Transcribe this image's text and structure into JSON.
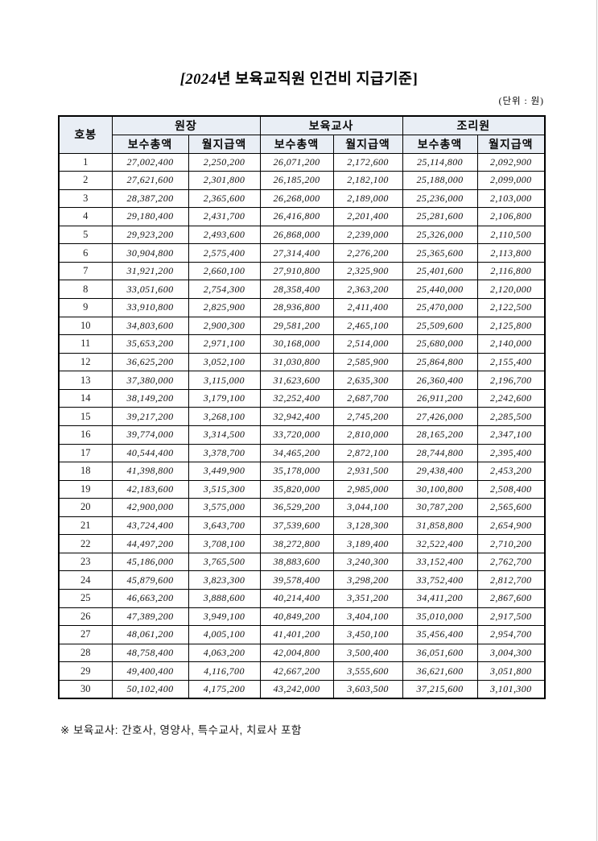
{
  "page": {
    "title_prefix": "[2024",
    "title_rest": "년 보육교직원 인건비 지급기준]",
    "unit_note": "(단위 : 원)",
    "footnote": "※ 보육교사: 간호사, 영양사, 특수교사, 치료사 포함"
  },
  "colors": {
    "header_bg": "#e9eef5",
    "border": "#000000",
    "page_edge": "#c9c9c9"
  },
  "table": {
    "corner_header": "호봉",
    "groups": [
      {
        "label": "원장"
      },
      {
        "label": "보육교사"
      },
      {
        "label": "조리원"
      }
    ],
    "sub_headers": [
      "보수총액",
      "월지급액"
    ],
    "rows": [
      {
        "grade": "1",
        "values": [
          "27,002,400",
          "2,250,200",
          "26,071,200",
          "2,172,600",
          "25,114,800",
          "2,092,900"
        ]
      },
      {
        "grade": "2",
        "values": [
          "27,621,600",
          "2,301,800",
          "26,185,200",
          "2,182,100",
          "25,188,000",
          "2,099,000"
        ]
      },
      {
        "grade": "3",
        "values": [
          "28,387,200",
          "2,365,600",
          "26,268,000",
          "2,189,000",
          "25,236,000",
          "2,103,000"
        ]
      },
      {
        "grade": "4",
        "values": [
          "29,180,400",
          "2,431,700",
          "26,416,800",
          "2,201,400",
          "25,281,600",
          "2,106,800"
        ]
      },
      {
        "grade": "5",
        "values": [
          "29,923,200",
          "2,493,600",
          "26,868,000",
          "2,239,000",
          "25,326,000",
          "2,110,500"
        ]
      },
      {
        "grade": "6",
        "values": [
          "30,904,800",
          "2,575,400",
          "27,314,400",
          "2,276,200",
          "25,365,600",
          "2,113,800"
        ]
      },
      {
        "grade": "7",
        "values": [
          "31,921,200",
          "2,660,100",
          "27,910,800",
          "2,325,900",
          "25,401,600",
          "2,116,800"
        ]
      },
      {
        "grade": "8",
        "values": [
          "33,051,600",
          "2,754,300",
          "28,358,400",
          "2,363,200",
          "25,440,000",
          "2,120,000"
        ]
      },
      {
        "grade": "9",
        "values": [
          "33,910,800",
          "2,825,900",
          "28,936,800",
          "2,411,400",
          "25,470,000",
          "2,122,500"
        ]
      },
      {
        "grade": "10",
        "values": [
          "34,803,600",
          "2,900,300",
          "29,581,200",
          "2,465,100",
          "25,509,600",
          "2,125,800"
        ]
      },
      {
        "grade": "11",
        "values": [
          "35,653,200",
          "2,971,100",
          "30,168,000",
          "2,514,000",
          "25,680,000",
          "2,140,000"
        ]
      },
      {
        "grade": "12",
        "values": [
          "36,625,200",
          "3,052,100",
          "31,030,800",
          "2,585,900",
          "25,864,800",
          "2,155,400"
        ]
      },
      {
        "grade": "13",
        "values": [
          "37,380,000",
          "3,115,000",
          "31,623,600",
          "2,635,300",
          "26,360,400",
          "2,196,700"
        ]
      },
      {
        "grade": "14",
        "values": [
          "38,149,200",
          "3,179,100",
          "32,252,400",
          "2,687,700",
          "26,911,200",
          "2,242,600"
        ]
      },
      {
        "grade": "15",
        "values": [
          "39,217,200",
          "3,268,100",
          "32,942,400",
          "2,745,200",
          "27,426,000",
          "2,285,500"
        ]
      },
      {
        "grade": "16",
        "values": [
          "39,774,000",
          "3,314,500",
          "33,720,000",
          "2,810,000",
          "28,165,200",
          "2,347,100"
        ]
      },
      {
        "grade": "17",
        "values": [
          "40,544,400",
          "3,378,700",
          "34,465,200",
          "2,872,100",
          "28,744,800",
          "2,395,400"
        ]
      },
      {
        "grade": "18",
        "values": [
          "41,398,800",
          "3,449,900",
          "35,178,000",
          "2,931,500",
          "29,438,400",
          "2,453,200"
        ]
      },
      {
        "grade": "19",
        "values": [
          "42,183,600",
          "3,515,300",
          "35,820,000",
          "2,985,000",
          "30,100,800",
          "2,508,400"
        ]
      },
      {
        "grade": "20",
        "values": [
          "42,900,000",
          "3,575,000",
          "36,529,200",
          "3,044,100",
          "30,787,200",
          "2,565,600"
        ]
      },
      {
        "grade": "21",
        "values": [
          "43,724,400",
          "3,643,700",
          "37,539,600",
          "3,128,300",
          "31,858,800",
          "2,654,900"
        ]
      },
      {
        "grade": "22",
        "values": [
          "44,497,200",
          "3,708,100",
          "38,272,800",
          "3,189,400",
          "32,522,400",
          "2,710,200"
        ]
      },
      {
        "grade": "23",
        "values": [
          "45,186,000",
          "3,765,500",
          "38,883,600",
          "3,240,300",
          "33,152,400",
          "2,762,700"
        ]
      },
      {
        "grade": "24",
        "values": [
          "45,879,600",
          "3,823,300",
          "39,578,400",
          "3,298,200",
          "33,752,400",
          "2,812,700"
        ]
      },
      {
        "grade": "25",
        "values": [
          "46,663,200",
          "3,888,600",
          "40,214,400",
          "3,351,200",
          "34,411,200",
          "2,867,600"
        ]
      },
      {
        "grade": "26",
        "values": [
          "47,389,200",
          "3,949,100",
          "40,849,200",
          "3,404,100",
          "35,010,000",
          "2,917,500"
        ]
      },
      {
        "grade": "27",
        "values": [
          "48,061,200",
          "4,005,100",
          "41,401,200",
          "3,450,100",
          "35,456,400",
          "2,954,700"
        ]
      },
      {
        "grade": "28",
        "values": [
          "48,758,400",
          "4,063,200",
          "42,004,800",
          "3,500,400",
          "36,051,600",
          "3,004,300"
        ]
      },
      {
        "grade": "29",
        "values": [
          "49,400,400",
          "4,116,700",
          "42,667,200",
          "3,555,600",
          "36,621,600",
          "3,051,800"
        ]
      },
      {
        "grade": "30",
        "values": [
          "50,102,400",
          "4,175,200",
          "43,242,000",
          "3,603,500",
          "37,215,600",
          "3,101,300"
        ]
      }
    ]
  }
}
